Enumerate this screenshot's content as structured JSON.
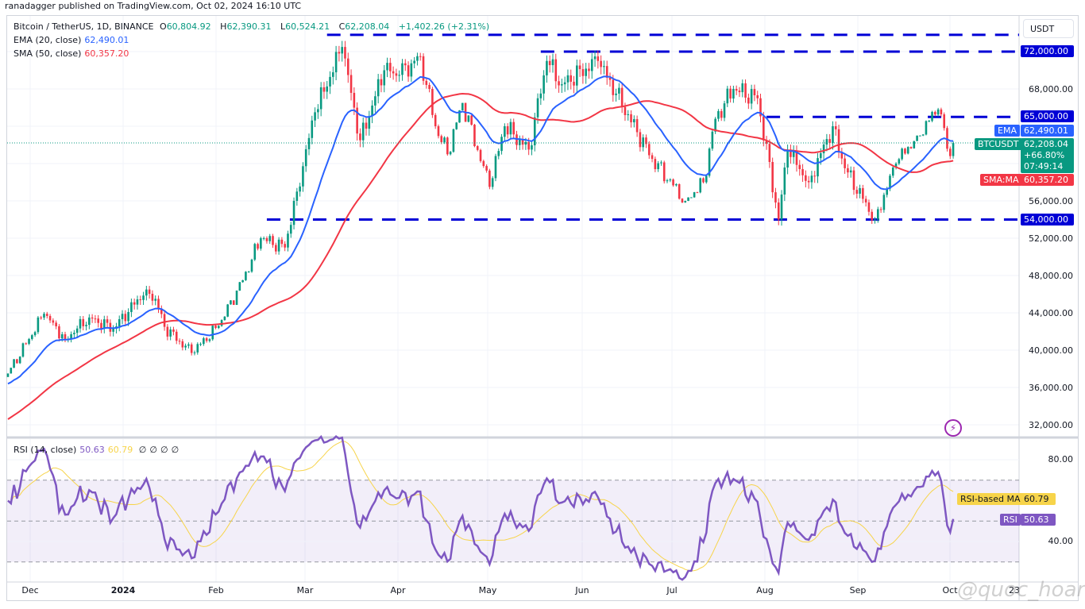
{
  "publisher_line": "ranadagger published on TradingView.com, Oct 02, 2024 16:10 UTC",
  "legend": {
    "symbol": "Bitcoin / TetherUS, 1D, BINANCE",
    "o_label": "O",
    "o": "60,804.92",
    "h_label": "H",
    "h": "62,390.31",
    "l_label": "L",
    "l": "60,524.21",
    "c_label": "C",
    "c": "62,208.04",
    "change": "+1,402.26 (+2.31%)",
    "ema_label": "EMA (20, close)",
    "ema_value": "62,490.01",
    "sma_label": "SMA (50, close)",
    "sma_value": "60,357.20",
    "rsi_label": "RSI (14, close)",
    "rsi_value": "50.63",
    "rsi_ma_value": "60.79",
    "rsi_extra": [
      "∅",
      "∅",
      "∅",
      "∅"
    ]
  },
  "currency_button": "USDT",
  "price_axis_ticks": [
    "68,000.00",
    "56,000.00",
    "52,000.00",
    "48,000.00",
    "44,000.00",
    "40,000.00",
    "36,000.00",
    "32,000.00"
  ],
  "price_tags": {
    "level_72": "72,000.00",
    "level_65": "65,000.00",
    "level_54": "54,000.00",
    "ema_name": "EMA",
    "ema": "62,490.01",
    "symbol_name": "BTCUSDT",
    "price": "62,208.04",
    "pct": "+66.80%",
    "countdown": "07:49:14",
    "sma_name": "SMA:MA",
    "sma": "60,357.20"
  },
  "rsi_axis_ticks": [
    "80.00",
    "40.00"
  ],
  "rsi_tags": {
    "ma_name": "RSI-based MA",
    "ma": "60.79",
    "rsi_name": "RSI",
    "rsi": "50.63"
  },
  "time_axis": [
    "Dec",
    "2024",
    "Feb",
    "Mar",
    "Apr",
    "May",
    "Jun",
    "Jul",
    "Aug",
    "Sep",
    "Oct",
    "23"
  ],
  "watermark": "@quoc_hoang",
  "colors": {
    "up": "#089981",
    "down": "#f23645",
    "ema": "#2962ff",
    "sma": "#f23645",
    "level": "#0000d6",
    "rsi": "#7e57c2",
    "rsi_ma": "#f7d44a"
  },
  "chart_data": {
    "type": "candlestick",
    "title": "Bitcoin / TetherUS, 1D, BINANCE",
    "ylabel": "USDT",
    "ylim": [
      32000,
      74000
    ],
    "x_range": [
      "2023-11-23",
      "2024-10-02"
    ],
    "last_candle": {
      "date": "2024-10-02",
      "open": 60804.92,
      "high": 62390.31,
      "low": 60524.21,
      "close": 62208.04
    },
    "close_anchors": [
      [
        "2023-11-23",
        37500
      ],
      [
        "2023-12-05",
        43900
      ],
      [
        "2023-12-12",
        41200
      ],
      [
        "2023-12-20",
        43500
      ],
      [
        "2023-12-28",
        42300
      ],
      [
        "2024-01-08",
        46500
      ],
      [
        "2024-01-11",
        45500
      ],
      [
        "2024-01-14",
        42500
      ],
      [
        "2024-01-23",
        39700
      ],
      [
        "2024-02-01",
        42600
      ],
      [
        "2024-02-09",
        47500
      ],
      [
        "2024-02-15",
        52000
      ],
      [
        "2024-02-23",
        51000
      ],
      [
        "2024-02-27",
        57000
      ],
      [
        "2024-03-04",
        65500
      ],
      [
        "2024-03-13",
        72500
      ],
      [
        "2024-03-19",
        62500
      ],
      [
        "2024-03-27",
        70000
      ],
      [
        "2024-04-01",
        69500
      ],
      [
        "2024-04-08",
        71500
      ],
      [
        "2024-04-13",
        64000
      ],
      [
        "2024-04-17",
        61000
      ],
      [
        "2024-04-22",
        66500
      ],
      [
        "2024-05-01",
        57500
      ],
      [
        "2024-05-06",
        64000
      ],
      [
        "2024-05-14",
        61500
      ],
      [
        "2024-05-20",
        71000
      ],
      [
        "2024-05-25",
        68500
      ],
      [
        "2024-06-06",
        71000
      ],
      [
        "2024-06-12",
        67500
      ],
      [
        "2024-06-24",
        60500
      ],
      [
        "2024-07-05",
        56000
      ],
      [
        "2024-07-11",
        58000
      ],
      [
        "2024-07-15",
        64800
      ],
      [
        "2024-07-21",
        68000
      ],
      [
        "2024-07-29",
        67000
      ],
      [
        "2024-08-05",
        54000
      ],
      [
        "2024-08-08",
        61500
      ],
      [
        "2024-08-15",
        58000
      ],
      [
        "2024-08-23",
        64000
      ],
      [
        "2024-08-27",
        59500
      ],
      [
        "2024-09-06",
        54000
      ],
      [
        "2024-09-13",
        60000
      ],
      [
        "2024-09-20",
        63000
      ],
      [
        "2024-09-27",
        65800
      ],
      [
        "2024-10-01",
        60800
      ],
      [
        "2024-10-02",
        62208.04
      ]
    ],
    "indicators": [
      {
        "name": "EMA 20",
        "last": 62490.01
      },
      {
        "name": "SMA 50",
        "last": 60357.2
      },
      {
        "name": "RSI 14",
        "last": 50.63
      },
      {
        "name": "RSI-based MA",
        "last": 60.79
      }
    ],
    "horizontal_levels": [
      {
        "price": 73800,
        "labeled": false,
        "from": "2024-03-08"
      },
      {
        "price": 72000,
        "labeled": true,
        "from": "2024-05-18"
      },
      {
        "price": 65000,
        "labeled": true,
        "from": "2024-08-01"
      },
      {
        "price": 54000,
        "labeled": true,
        "from": "2024-02-17"
      }
    ],
    "rsi_ylim": [
      20,
      95
    ],
    "rsi_bands": [
      30,
      50,
      70
    ]
  }
}
